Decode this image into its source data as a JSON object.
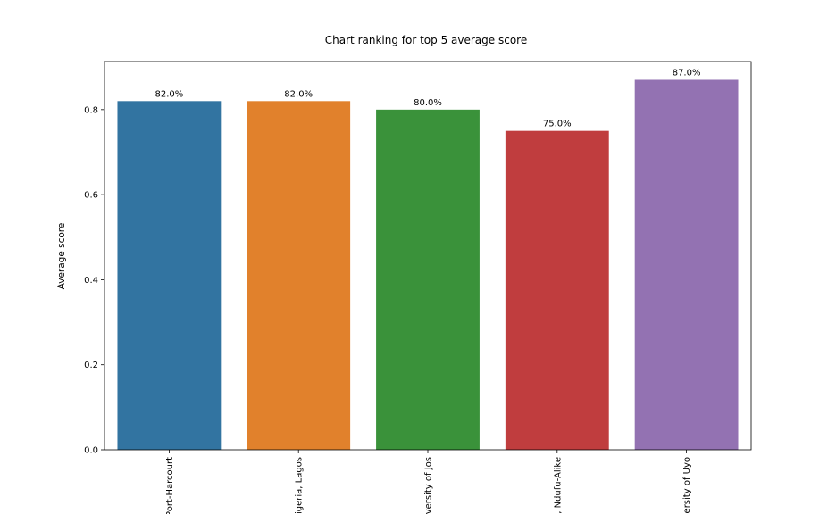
{
  "chart_data": {
    "type": "bar",
    "title": "Chart ranking for top 5 average score",
    "xlabel": "",
    "ylabel": "Average score",
    "categories": [
      "Port-Harcourt",
      "igeria, Lagos",
      "versity of Jos",
      ", Ndufu-Alike",
      "ersity of Uyo"
    ],
    "values": [
      0.82,
      0.82,
      0.8,
      0.75,
      0.87
    ],
    "data_labels": [
      "82.0%",
      "82.0%",
      "80.0%",
      "75.0%",
      "87.0%"
    ],
    "colors": [
      "#3274a1",
      "#e1812c",
      "#3a923a",
      "#c03d3e",
      "#9372b2"
    ],
    "ylim": [
      0,
      0.913
    ],
    "yticks": [
      0.0,
      0.2,
      0.4,
      0.6,
      0.8
    ],
    "ytick_labels": [
      "0.0",
      "0.2",
      "0.4",
      "0.6",
      "0.8"
    ],
    "grid": false,
    "legend": "none"
  }
}
